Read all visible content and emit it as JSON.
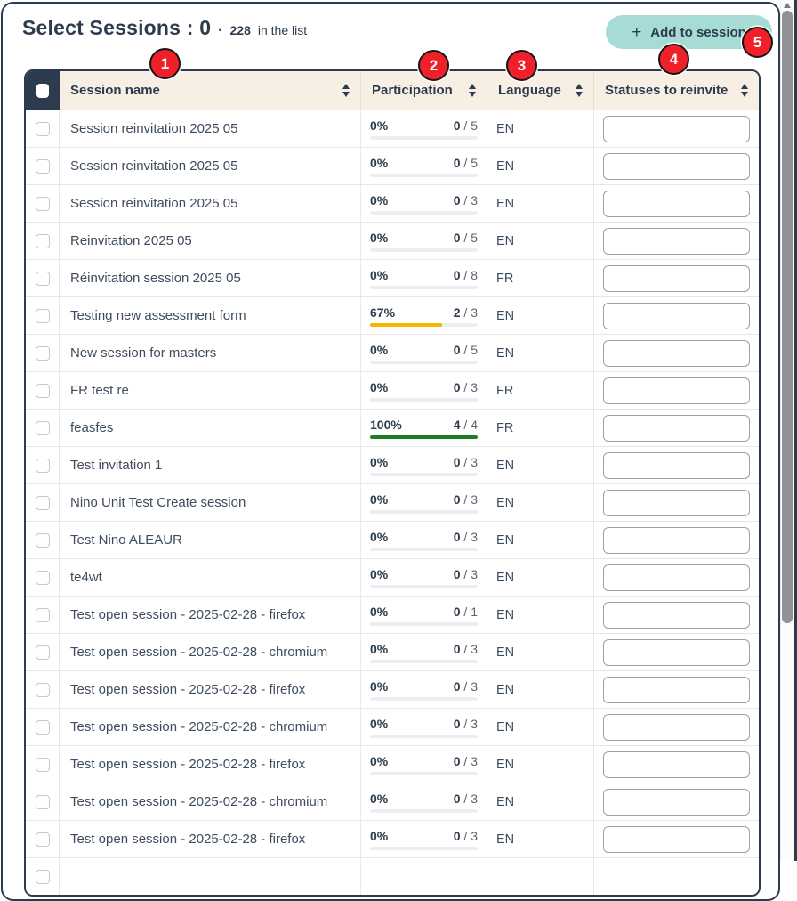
{
  "header": {
    "title": "Select Sessions : 0",
    "separator": "·",
    "list_count": "228",
    "list_count_label": "in the list",
    "add_button_label": "Add to session",
    "add_button_plus": "+"
  },
  "colors": {
    "accent_navy": "#2c3b4e",
    "header_cream": "#f7efe4",
    "button_teal": "#a6dcd5",
    "badge_red": "#ef2029",
    "bar_track": "#eceef1",
    "bar_amber": "#f8b500",
    "bar_green": "#1c7d21"
  },
  "table": {
    "columns": [
      {
        "label": "Session name"
      },
      {
        "label": "Participation"
      },
      {
        "label": "Language"
      },
      {
        "label": "Statuses to reinvite"
      }
    ],
    "rows": [
      {
        "name": "Session reinvitation 2025 05",
        "percent": "0%",
        "done": "0",
        "total": "5",
        "percent_value": 0,
        "bar_color": "#eceef1",
        "language": "EN"
      },
      {
        "name": "Session reinvitation 2025 05",
        "percent": "0%",
        "done": "0",
        "total": "5",
        "percent_value": 0,
        "bar_color": "#eceef1",
        "language": "EN"
      },
      {
        "name": "Session reinvitation 2025 05",
        "percent": "0%",
        "done": "0",
        "total": "3",
        "percent_value": 0,
        "bar_color": "#eceef1",
        "language": "EN"
      },
      {
        "name": "Reinvitation 2025 05",
        "percent": "0%",
        "done": "0",
        "total": "5",
        "percent_value": 0,
        "bar_color": "#eceef1",
        "language": "EN"
      },
      {
        "name": "Réinvitation session 2025 05",
        "percent": "0%",
        "done": "0",
        "total": "8",
        "percent_value": 0,
        "bar_color": "#eceef1",
        "language": "FR"
      },
      {
        "name": "Testing new assessment form",
        "percent": "67%",
        "done": "2",
        "total": "3",
        "percent_value": 67,
        "bar_color": "#f8b500",
        "language": "EN"
      },
      {
        "name": "New session for masters",
        "percent": "0%",
        "done": "0",
        "total": "5",
        "percent_value": 0,
        "bar_color": "#eceef1",
        "language": "EN"
      },
      {
        "name": "FR test re",
        "percent": "0%",
        "done": "0",
        "total": "3",
        "percent_value": 0,
        "bar_color": "#eceef1",
        "language": "FR"
      },
      {
        "name": "feasfes",
        "percent": "100%",
        "done": "4",
        "total": "4",
        "percent_value": 100,
        "bar_color": "#1c7d21",
        "language": "FR"
      },
      {
        "name": "Test invitation 1",
        "percent": "0%",
        "done": "0",
        "total": "3",
        "percent_value": 0,
        "bar_color": "#eceef1",
        "language": "EN"
      },
      {
        "name": "Nino Unit Test Create session",
        "percent": "0%",
        "done": "0",
        "total": "3",
        "percent_value": 0,
        "bar_color": "#eceef1",
        "language": "EN"
      },
      {
        "name": "Test Nino ALEAUR",
        "percent": "0%",
        "done": "0",
        "total": "3",
        "percent_value": 0,
        "bar_color": "#eceef1",
        "language": "EN"
      },
      {
        "name": "te4wt",
        "percent": "0%",
        "done": "0",
        "total": "3",
        "percent_value": 0,
        "bar_color": "#eceef1",
        "language": "EN"
      },
      {
        "name": "Test open session - 2025-02-28 - firefox",
        "percent": "0%",
        "done": "0",
        "total": "1",
        "percent_value": 0,
        "bar_color": "#eceef1",
        "language": "EN"
      },
      {
        "name": "Test open session - 2025-02-28 - chromium",
        "percent": "0%",
        "done": "0",
        "total": "3",
        "percent_value": 0,
        "bar_color": "#eceef1",
        "language": "EN"
      },
      {
        "name": "Test open session - 2025-02-28 - firefox",
        "percent": "0%",
        "done": "0",
        "total": "3",
        "percent_value": 0,
        "bar_color": "#eceef1",
        "language": "EN"
      },
      {
        "name": "Test open session - 2025-02-28 - chromium",
        "percent": "0%",
        "done": "0",
        "total": "3",
        "percent_value": 0,
        "bar_color": "#eceef1",
        "language": "EN"
      },
      {
        "name": "Test open session - 2025-02-28 - firefox",
        "percent": "0%",
        "done": "0",
        "total": "3",
        "percent_value": 0,
        "bar_color": "#eceef1",
        "language": "EN"
      },
      {
        "name": "Test open session - 2025-02-28 - chromium",
        "percent": "0%",
        "done": "0",
        "total": "3",
        "percent_value": 0,
        "bar_color": "#eceef1",
        "language": "EN"
      },
      {
        "name": "Test open session - 2025-02-28 - firefox",
        "percent": "0%",
        "done": "0",
        "total": "3",
        "percent_value": 0,
        "bar_color": "#eceef1",
        "language": "EN"
      },
      {
        "name": "",
        "percent": "",
        "done": "",
        "total": "",
        "percent_value": 0,
        "bar_color": "#eceef1",
        "language": "",
        "partial": true
      }
    ]
  },
  "annotations": [
    "1",
    "2",
    "3",
    "4",
    "5"
  ]
}
